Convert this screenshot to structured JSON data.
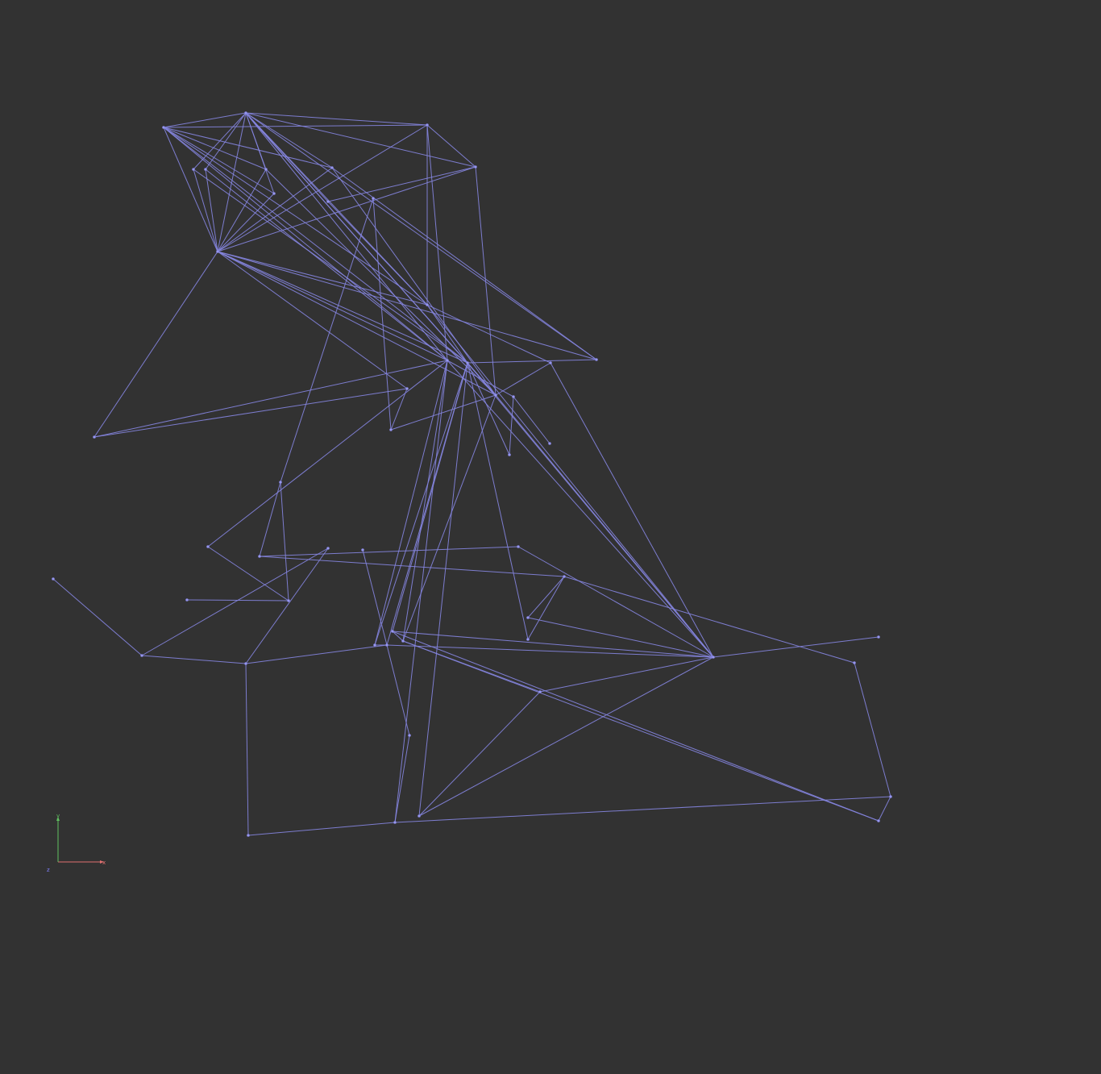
{
  "viewport": {
    "background": "#323232",
    "edge_color": "#8585e0"
  },
  "axes": {
    "x_label": "x",
    "y_label": "y",
    "z_label": "z",
    "x_color": "#e07070",
    "y_color": "#60c060",
    "z_color": "#8080ff"
  }
}
